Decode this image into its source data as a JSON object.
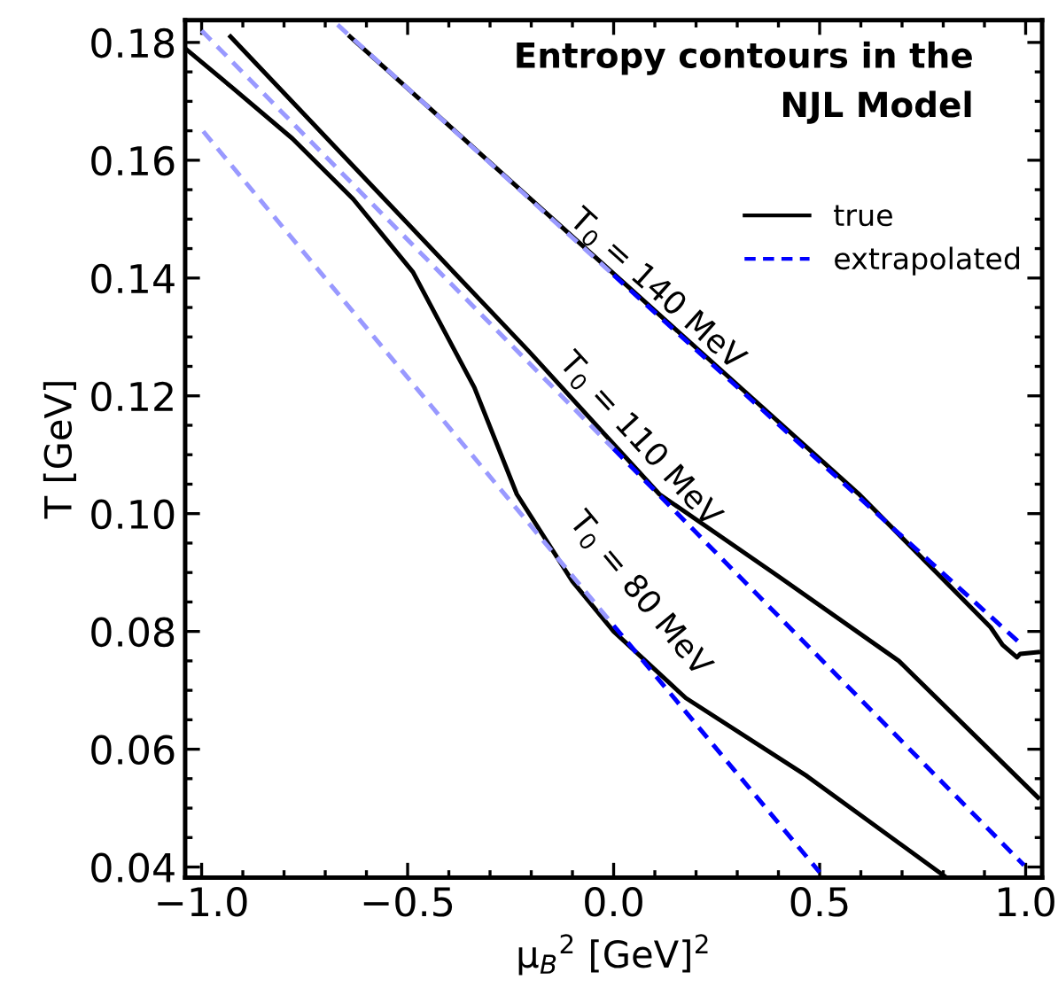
{
  "chart_data": {
    "type": "line",
    "title": "Entropy contours in the\nNJL Model",
    "xlabel": "μ$_{B}$$^{2}$ [GeV]$^{2}$",
    "ylabel": "T [GeV]",
    "xlim": [
      -1.04,
      1.04
    ],
    "ylim": [
      0.0382,
      0.1838
    ],
    "xticks": [
      {
        "value": -1.0,
        "label": "−1.0"
      },
      {
        "value": -0.5,
        "label": "−0.5"
      },
      {
        "value": 0.0,
        "label": "0.0"
      },
      {
        "value": 0.5,
        "label": "0.5"
      },
      {
        "value": 1.0,
        "label": "1.0"
      }
    ],
    "yticks": [
      {
        "value": 0.04,
        "label": "0.04"
      },
      {
        "value": 0.06,
        "label": "0.06"
      },
      {
        "value": 0.08,
        "label": "0.08"
      },
      {
        "value": 0.1,
        "label": "0.10"
      },
      {
        "value": 0.12,
        "label": "0.12"
      },
      {
        "value": 0.14,
        "label": "0.14"
      },
      {
        "value": 0.16,
        "label": "0.16"
      },
      {
        "value": 0.18,
        "label": "0.18"
      }
    ],
    "grid": false,
    "legend": "top right",
    "marker": "none",
    "series": [
      {
        "name": "true",
        "color": "#000000",
        "line_style": "solid",
        "x": [
          -0.64,
          0.594,
          0.915,
          0.944,
          0.979,
          0.987,
          1.03
        ],
        "values": [
          0.181,
          0.1034,
          0.0807,
          0.0777,
          0.0756,
          0.0762,
          0.0765
        ]
      },
      {
        "color": "#000000",
        "line_style": "solid",
        "x": [
          -0.93,
          -0.205,
          0.111,
          0.397,
          0.692,
          1.03
        ],
        "values": [
          0.181,
          0.1275,
          0.1033,
          0.0895,
          0.075,
          0.0518
        ]
      },
      {
        "color": "#000000",
        "line_style": "solid",
        "x": [
          -1.04,
          -0.927,
          -0.78,
          -0.632,
          -0.487,
          -0.338,
          -0.235,
          -0.1,
          0.0,
          0.175,
          0.47,
          0.808
        ],
        "values": [
          0.179,
          0.1724,
          0.1637,
          0.1534,
          0.141,
          0.1214,
          0.1033,
          0.0885,
          0.08,
          0.0687,
          0.0554,
          0.0382
        ]
      },
      {
        "color": "#9999ff",
        "line_style": "dashed",
        "x": [
          -0.67,
          0.0
        ],
        "values": [
          0.183,
          0.1405
        ]
      },
      {
        "name": "extrapolated",
        "color": "#0000ff",
        "line_style": "dashed",
        "x": [
          0.0,
          0.996
        ],
        "values": [
          0.1405,
          0.0774
        ]
      },
      {
        "color": "#9999ff",
        "line_style": "dashed",
        "x": [
          -1.0,
          0.0
        ],
        "values": [
          0.182,
          0.111
        ]
      },
      {
        "color": "#0000ff",
        "line_style": "dashed",
        "x": [
          0.0,
          0.996
        ],
        "values": [
          0.111,
          0.0403
        ]
      },
      {
        "color": "#9999ff",
        "line_style": "dashed",
        "x": [
          -0.996,
          0.0
        ],
        "values": [
          0.1649,
          0.081
        ]
      },
      {
        "color": "#0000ff",
        "line_style": "dashed",
        "x": [
          0.0,
          0.5
        ],
        "values": [
          0.081,
          0.0391
        ]
      }
    ],
    "annotations": [
      "T$_{0}$ = 140 MeV",
      "T$_{0}$ = 110 MeV",
      "T$_{0}$ = 80 MeV"
    ]
  }
}
